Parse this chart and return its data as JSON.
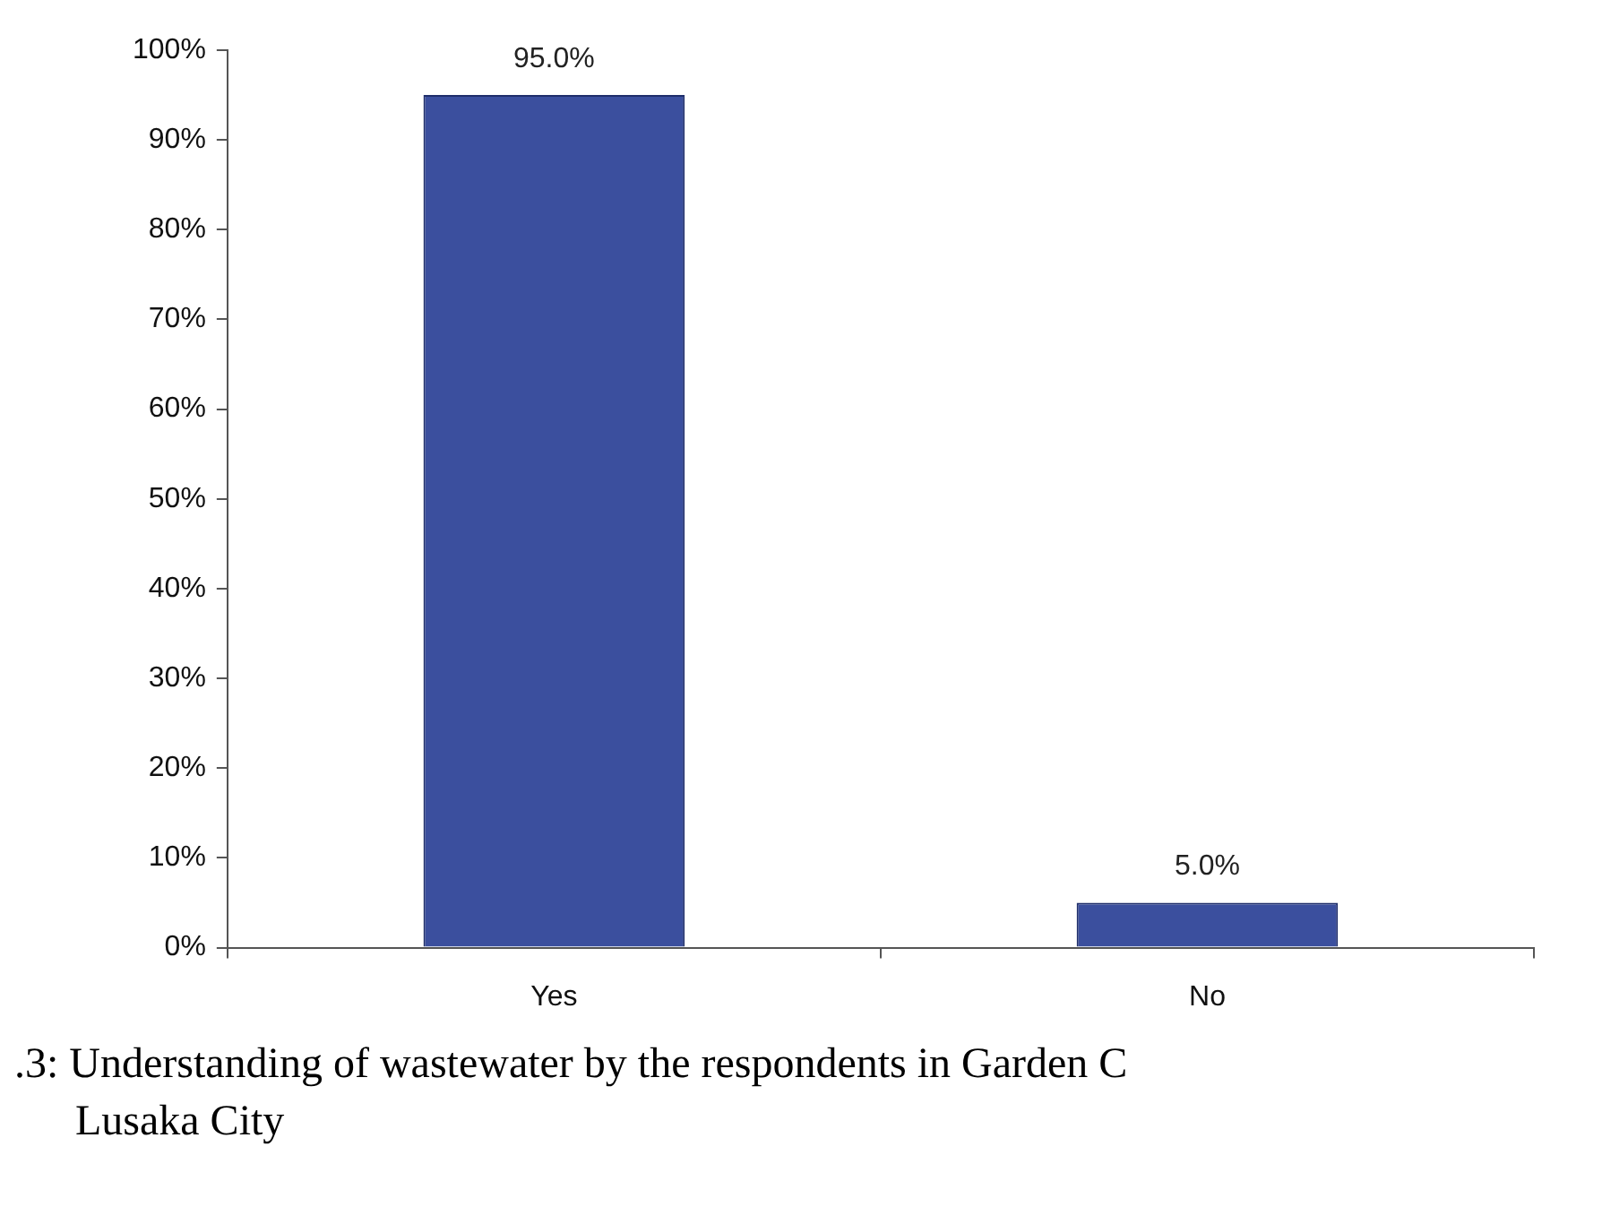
{
  "chart_data": {
    "type": "bar",
    "categories": [
      "Yes",
      "No"
    ],
    "values": [
      95,
      5
    ],
    "value_labels": [
      "95.0%",
      "5.0%"
    ],
    "color": "#3b4f9e",
    "ylim": [
      0,
      100
    ],
    "yticks": [
      {
        "value": 0,
        "label": "0%"
      },
      {
        "value": 10,
        "label": "10%"
      },
      {
        "value": 20,
        "label": "20%"
      },
      {
        "value": 30,
        "label": "30%"
      },
      {
        "value": 40,
        "label": "40%"
      },
      {
        "value": 50,
        "label": "50%"
      },
      {
        "value": 60,
        "label": "60%"
      },
      {
        "value": 70,
        "label": "70%"
      },
      {
        "value": 80,
        "label": "80%"
      },
      {
        "value": 90,
        "label": "90%"
      },
      {
        "value": 100,
        "label": "100%"
      }
    ],
    "grid": false,
    "legend": false,
    "annotations": [
      ".3: Understanding of wastewater by the respondents in Garden C",
      "Lusaka City"
    ]
  }
}
